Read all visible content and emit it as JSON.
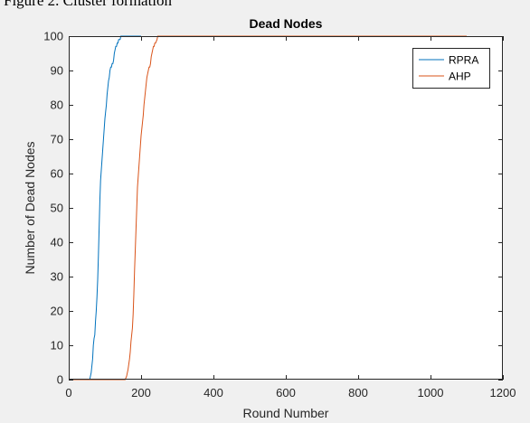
{
  "caption": "Figure 2. Cluster formation",
  "colors": {
    "figure_bg": "#f0f0f0",
    "axes_bg": "#ffffff",
    "axis": "#262626",
    "rpra": "#0072bd",
    "ahp": "#d95319"
  },
  "chart_data": {
    "type": "line",
    "title": "Dead Nodes",
    "xlabel": "Round Number",
    "ylabel": "Number of Dead Nodes",
    "xlim": [
      0,
      1200
    ],
    "ylim": [
      0,
      100
    ],
    "xticks": [
      0,
      200,
      400,
      600,
      800,
      1000,
      1200
    ],
    "yticks": [
      0,
      10,
      20,
      30,
      40,
      50,
      60,
      70,
      80,
      90,
      100
    ],
    "grid": false,
    "legend_position": "top-right",
    "series": [
      {
        "name": "RPRA",
        "color": "#0072bd",
        "x": [
          0,
          58,
          62,
          64,
          66,
          68,
          70,
          72,
          74,
          76,
          78,
          80,
          82,
          84,
          86,
          88,
          90,
          92,
          94,
          96,
          98,
          100,
          102,
          104,
          106,
          108,
          110,
          112,
          114,
          116,
          118,
          120,
          122,
          124,
          126,
          128,
          130,
          132,
          134,
          136,
          138,
          140,
          142,
          144,
          146,
          148,
          150,
          200
        ],
        "y": [
          0,
          0,
          2,
          4,
          6,
          10,
          12,
          13,
          17,
          20,
          24,
          29,
          36,
          44,
          52,
          58,
          61,
          64,
          67,
          70,
          73,
          76,
          78,
          80,
          83,
          85,
          87,
          88,
          90,
          91,
          91,
          92,
          92,
          93,
          95,
          96,
          97,
          97,
          98,
          98,
          99,
          99,
          99,
          100,
          100,
          100,
          100,
          100
        ]
      },
      {
        "name": "AHP",
        "color": "#d95319",
        "x": [
          0,
          156,
          160,
          164,
          168,
          170,
          172,
          174,
          176,
          178,
          180,
          182,
          184,
          186,
          188,
          190,
          192,
          194,
          196,
          198,
          200,
          202,
          204,
          206,
          208,
          210,
          212,
          214,
          216,
          218,
          220,
          222,
          224,
          226,
          228,
          230,
          232,
          234,
          236,
          238,
          240,
          244,
          246,
          250,
          1100
        ],
        "y": [
          0,
          0,
          1,
          3,
          6,
          8,
          11,
          13,
          15,
          19,
          25,
          32,
          38,
          44,
          50,
          56,
          59,
          62,
          65,
          68,
          71,
          73,
          75,
          77,
          80,
          82,
          84,
          86,
          88,
          89,
          90,
          91,
          91,
          92,
          94,
          95,
          96,
          97,
          97,
          98,
          98,
          99,
          100,
          100,
          100
        ]
      }
    ]
  }
}
